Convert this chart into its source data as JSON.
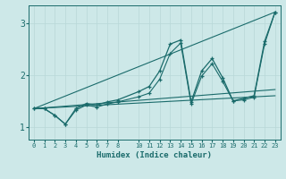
{
  "xlabel": "Humidex (Indice chaleur)",
  "background_color": "#cde8e8",
  "grid_color": "#b8d8d8",
  "line_color": "#1a6b6b",
  "xlim": [
    -0.5,
    23.5
  ],
  "ylim": [
    0.75,
    3.35
  ],
  "yticks": [
    1,
    2,
    3
  ],
  "xticks": [
    0,
    1,
    2,
    3,
    4,
    5,
    6,
    7,
    8,
    10,
    11,
    12,
    13,
    14,
    15,
    16,
    17,
    18,
    19,
    20,
    21,
    22,
    23
  ],
  "series_zigzag_x": [
    0,
    1,
    2,
    3,
    4,
    5,
    6,
    7,
    8,
    10,
    11,
    12,
    13,
    14,
    15,
    16,
    17,
    18,
    19,
    20,
    21,
    22,
    23
  ],
  "series_zigzag_y": [
    1.35,
    1.35,
    1.22,
    1.05,
    1.35,
    1.45,
    1.42,
    1.48,
    1.52,
    1.68,
    1.78,
    2.08,
    2.6,
    2.68,
    1.48,
    2.08,
    2.32,
    1.95,
    1.5,
    1.55,
    1.6,
    2.65,
    3.22
  ],
  "series_smooth_x": [
    0,
    1,
    2,
    3,
    4,
    5,
    6,
    7,
    8,
    10,
    11,
    12,
    13,
    14,
    15,
    16,
    17,
    18,
    19,
    20,
    21,
    22,
    23
  ],
  "series_smooth_y": [
    1.35,
    1.35,
    1.22,
    1.05,
    1.32,
    1.42,
    1.38,
    1.44,
    1.48,
    1.58,
    1.65,
    1.92,
    2.42,
    2.62,
    1.44,
    1.98,
    2.22,
    1.88,
    1.5,
    1.52,
    1.57,
    2.6,
    3.22
  ],
  "trend1_x": [
    0,
    23
  ],
  "trend1_y": [
    1.35,
    3.22
  ],
  "trend2_x": [
    0,
    23
  ],
  "trend2_y": [
    1.35,
    1.72
  ],
  "trend3_x": [
    0,
    23
  ],
  "trend3_y": [
    1.35,
    1.6
  ]
}
